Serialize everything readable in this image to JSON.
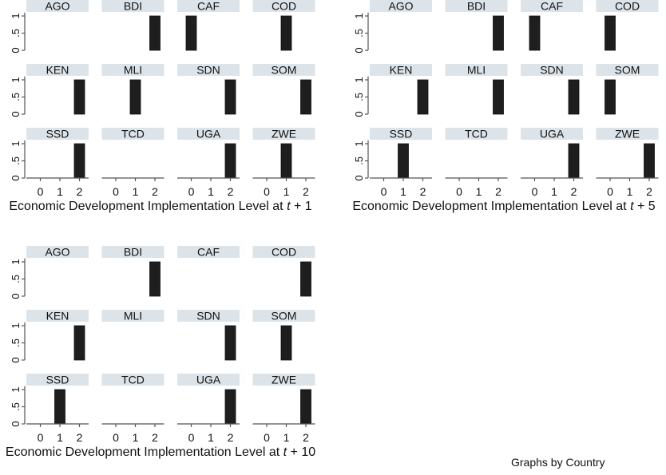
{
  "chart_data": [
    {
      "type": "bar",
      "xlabel_prefix": "Economic Development Implementation Level at ",
      "xlabel_var": "t",
      "xlabel_suffix": " + 1",
      "x_ticks": [
        "0",
        "1",
        "2"
      ],
      "y_ticks": [
        "0",
        ".5",
        "1"
      ],
      "ylim": [
        0,
        1.1
      ],
      "panels": [
        {
          "country": "AGO",
          "values": [
            0,
            0,
            0
          ]
        },
        {
          "country": "BDI",
          "values": [
            0,
            0,
            1
          ]
        },
        {
          "country": "CAF",
          "values": [
            1,
            0,
            0
          ]
        },
        {
          "country": "COD",
          "values": [
            0,
            1,
            0
          ]
        },
        {
          "country": "KEN",
          "values": [
            0,
            0,
            1
          ]
        },
        {
          "country": "MLI",
          "values": [
            0,
            1,
            0
          ]
        },
        {
          "country": "SDN",
          "values": [
            0,
            0,
            1
          ]
        },
        {
          "country": "SOM",
          "values": [
            0,
            0,
            1
          ]
        },
        {
          "country": "SSD",
          "values": [
            0,
            0,
            1
          ]
        },
        {
          "country": "TCD",
          "values": [
            0,
            0,
            0
          ]
        },
        {
          "country": "UGA",
          "values": [
            0,
            0,
            1
          ]
        },
        {
          "country": "ZWE",
          "values": [
            0,
            1,
            0
          ]
        }
      ]
    },
    {
      "type": "bar",
      "xlabel_prefix": "Economic Development Implementation Level at ",
      "xlabel_var": "t",
      "xlabel_suffix": " + 5",
      "x_ticks": [
        "0",
        "1",
        "2"
      ],
      "y_ticks": [
        "0",
        ".5",
        "1"
      ],
      "ylim": [
        0,
        1.1
      ],
      "panels": [
        {
          "country": "AGO",
          "values": [
            0,
            0,
            0
          ]
        },
        {
          "country": "BDI",
          "values": [
            0,
            0,
            1
          ]
        },
        {
          "country": "CAF",
          "values": [
            1,
            0,
            0
          ]
        },
        {
          "country": "COD",
          "values": [
            1,
            0,
            0
          ]
        },
        {
          "country": "KEN",
          "values": [
            0,
            0,
            1
          ]
        },
        {
          "country": "MLI",
          "values": [
            0,
            0,
            1
          ]
        },
        {
          "country": "SDN",
          "values": [
            0,
            0,
            1
          ]
        },
        {
          "country": "SOM",
          "values": [
            1,
            0,
            0
          ]
        },
        {
          "country": "SSD",
          "values": [
            0,
            1,
            0
          ]
        },
        {
          "country": "TCD",
          "values": [
            0,
            0,
            0
          ]
        },
        {
          "country": "UGA",
          "values": [
            0,
            0,
            1
          ]
        },
        {
          "country": "ZWE",
          "values": [
            0,
            0,
            1
          ]
        }
      ]
    },
    {
      "type": "bar",
      "xlabel_prefix": "Economic Development Implementation Level at ",
      "xlabel_var": "t",
      "xlabel_suffix": " + 10",
      "x_ticks": [
        "0",
        "1",
        "2"
      ],
      "y_ticks": [
        "0",
        ".5",
        "1"
      ],
      "ylim": [
        0,
        1.1
      ],
      "panels": [
        {
          "country": "AGO",
          "values": [
            0,
            0,
            0
          ]
        },
        {
          "country": "BDI",
          "values": [
            0,
            0,
            1
          ]
        },
        {
          "country": "CAF",
          "values": [
            0,
            0,
            0
          ]
        },
        {
          "country": "COD",
          "values": [
            0,
            0,
            1
          ]
        },
        {
          "country": "KEN",
          "values": [
            0,
            0,
            1
          ]
        },
        {
          "country": "MLI",
          "values": [
            0,
            0,
            0
          ]
        },
        {
          "country": "SDN",
          "values": [
            0,
            0,
            1
          ]
        },
        {
          "country": "SOM",
          "values": [
            0,
            1,
            0
          ]
        },
        {
          "country": "SSD",
          "values": [
            0,
            1,
            0
          ]
        },
        {
          "country": "TCD",
          "values": [
            0,
            0,
            0
          ]
        },
        {
          "country": "UGA",
          "values": [
            0,
            0,
            1
          ]
        },
        {
          "country": "ZWE",
          "values": [
            0,
            0,
            1
          ]
        }
      ]
    }
  ],
  "note": "Graphs by Country",
  "colors": {
    "bar": "#1e1e1e",
    "strip": "#dce4ea",
    "axis": "#555555"
  }
}
